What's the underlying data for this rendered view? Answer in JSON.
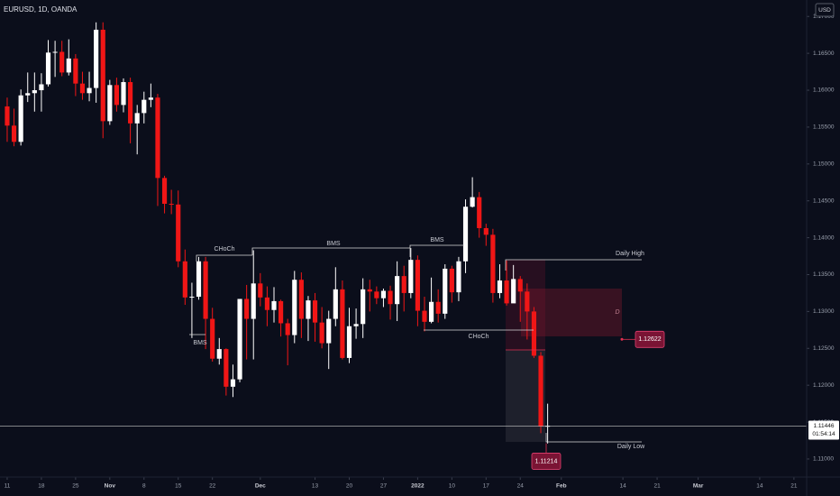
{
  "header": {
    "symbol": "EURUSD, 1D, OANDA",
    "currency": "USD"
  },
  "chart_data": {
    "type": "candlestick",
    "open": [
      1.1578,
      1.1552,
      1.153,
      1.1593,
      1.1596,
      1.16,
      1.1608,
      1.1651,
      1.1652,
      1.1624,
      1.1643,
      1.1609,
      1.1596,
      1.1603,
      1.1682,
      1.1558,
      1.1607,
      1.158,
      1.1611,
      1.1555,
      1.1569,
      1.1587,
      1.159,
      1.1481,
      1.1446,
      1.1445,
      1.1368,
      1.1319,
      1.132,
      1.1368,
      1.129,
      1.1236,
      1.1249,
      1.1198,
      1.1208,
      1.1317,
      1.129,
      1.1338,
      1.1319,
      1.1302,
      1.1314,
      1.1284,
      1.1268,
      1.1343,
      1.129,
      1.1315,
      1.1285,
      1.1257,
      1.129,
      1.133,
      1.1237,
      1.128,
      1.1283,
      1.133,
      1.1327,
      1.1318,
      1.1328,
      1.131,
      1.1348,
      1.1325,
      1.137,
      1.1301,
      1.1286,
      1.1313,
      1.1297,
      1.1358,
      1.1326,
      1.1368,
      1.1442,
      1.1455,
      1.1413,
      1.1404,
      1.1325,
      1.1342,
      1.1311,
      1.1344,
      1.1327,
      1.13,
      1.124,
      1.1144
    ],
    "high": [
      1.159,
      1.1575,
      1.1601,
      1.1624,
      1.1624,
      1.1623,
      1.1668,
      1.1667,
      1.1667,
      1.1669,
      1.1649,
      1.1625,
      1.1625,
      1.1692,
      1.1692,
      1.1614,
      1.1617,
      1.1616,
      1.1617,
      1.158,
      1.1598,
      1.1609,
      1.1595,
      1.1484,
      1.1465,
      1.1464,
      1.1384,
      1.1339,
      1.1374,
      1.1374,
      1.1305,
      1.1264,
      1.125,
      1.1228,
      1.1316,
      1.1336,
      1.1383,
      1.1352,
      1.1334,
      1.1333,
      1.1316,
      1.129,
      1.1355,
      1.1353,
      1.1321,
      1.1325,
      1.1306,
      1.1301,
      1.136,
      1.1342,
      1.1305,
      1.1304,
      1.1345,
      1.1343,
      1.1334,
      1.1331,
      1.1335,
      1.1368,
      1.1362,
      1.1386,
      1.1376,
      1.132,
      1.1346,
      1.133,
      1.1364,
      1.1362,
      1.1374,
      1.1452,
      1.1482,
      1.1462,
      1.1419,
      1.1412,
      1.1364,
      1.1369,
      1.1363,
      1.1348,
      1.1338,
      1.1306,
      1.1245,
      1.1175
    ],
    "low": [
      1.153,
      1.1524,
      1.1525,
      1.1584,
      1.1571,
      1.1571,
      1.1605,
      1.1618,
      1.1619,
      1.162,
      1.1592,
      1.1587,
      1.1585,
      1.1583,
      1.1535,
      1.1553,
      1.1571,
      1.157,
      1.1528,
      1.1513,
      1.1555,
      1.1577,
      1.1443,
      1.1433,
      1.1432,
      1.136,
      1.1309,
      1.1264,
      1.1316,
      1.1249,
      1.1232,
      1.1228,
      1.1186,
      1.1184,
      1.1204,
      1.1235,
      1.1235,
      1.1307,
      1.128,
      1.1285,
      1.1266,
      1.1227,
      1.1257,
      1.1264,
      1.126,
      1.1259,
      1.125,
      1.1222,
      1.128,
      1.1235,
      1.123,
      1.1263,
      1.1264,
      1.13,
      1.131,
      1.1306,
      1.1289,
      1.1287,
      1.13,
      1.1318,
      1.128,
      1.1273,
      1.1284,
      1.1285,
      1.129,
      1.1312,
      1.1314,
      1.1352,
      1.1441,
      1.14,
      1.1389,
      1.1312,
      1.1318,
      1.1308,
      1.1312,
      1.1286,
      1.1262,
      1.1237,
      1.1135,
      1.1121
    ],
    "close": [
      1.1552,
      1.153,
      1.1593,
      1.1596,
      1.16,
      1.1608,
      1.1651,
      1.1652,
      1.1624,
      1.1643,
      1.1609,
      1.1596,
      1.1603,
      1.1682,
      1.1558,
      1.1607,
      1.158,
      1.1611,
      1.1555,
      1.1569,
      1.1587,
      1.159,
      1.1481,
      1.1446,
      1.1445,
      1.1368,
      1.1319,
      1.132,
      1.1368,
      1.129,
      1.1236,
      1.1249,
      1.1198,
      1.1208,
      1.1317,
      1.129,
      1.1338,
      1.1319,
      1.1302,
      1.1314,
      1.1284,
      1.1268,
      1.1343,
      1.129,
      1.1315,
      1.1285,
      1.1257,
      1.129,
      1.133,
      1.1237,
      1.128,
      1.1283,
      1.133,
      1.1327,
      1.1318,
      1.1328,
      1.131,
      1.1348,
      1.1325,
      1.137,
      1.1301,
      1.1286,
      1.1313,
      1.1297,
      1.1358,
      1.1326,
      1.1368,
      1.1442,
      1.1455,
      1.1413,
      1.1404,
      1.1325,
      1.1342,
      1.1311,
      1.1344,
      1.1327,
      1.13,
      1.124,
      1.1144,
      1.1145
    ],
    "up_color": "#ffffff",
    "down_color": "#f01616",
    "xlim": [
      -1.05,
      116.86
    ],
    "xticks": [
      {
        "value": 0,
        "label": "11"
      },
      {
        "value": 5,
        "label": "18"
      },
      {
        "value": 10,
        "label": "25"
      },
      {
        "value": 15,
        "label": "Nov"
      },
      {
        "value": 20,
        "label": "8"
      },
      {
        "value": 25,
        "label": "15"
      },
      {
        "value": 30,
        "label": "22"
      },
      {
        "value": 37,
        "label": "Dec"
      },
      {
        "value": 45,
        "label": "13"
      },
      {
        "value": 50,
        "label": "20"
      },
      {
        "value": 55,
        "label": "27"
      },
      {
        "value": 60,
        "label": "2022"
      },
      {
        "value": 65,
        "label": "10"
      },
      {
        "value": 70,
        "label": "17"
      },
      {
        "value": 75,
        "label": "24"
      },
      {
        "value": 81,
        "label": "Feb"
      },
      {
        "value": 90,
        "label": "14"
      },
      {
        "value": 95,
        "label": "21"
      },
      {
        "value": 101,
        "label": "Mar"
      },
      {
        "value": 110,
        "label": "14"
      },
      {
        "value": 115,
        "label": "21"
      }
    ],
    "ylim": [
      1.10755,
      1.17223
    ],
    "yticks": [
      {
        "value": 1.11,
        "label": "1.11000"
      },
      {
        "value": 1.115,
        "label": "1.11500"
      },
      {
        "value": 1.12,
        "label": "1.12000"
      },
      {
        "value": 1.125,
        "label": "1.12500"
      },
      {
        "value": 1.13,
        "label": "1.13000"
      },
      {
        "value": 1.135,
        "label": "1.13500"
      },
      {
        "value": 1.14,
        "label": "1.14000"
      },
      {
        "value": 1.145,
        "label": "1.14500"
      },
      {
        "value": 1.15,
        "label": "1.15000"
      },
      {
        "value": 1.155,
        "label": "1.15500"
      },
      {
        "value": 1.16,
        "label": "1.16000"
      },
      {
        "value": 1.165,
        "label": "1.16500"
      },
      {
        "value": 1.17,
        "label": "1.17000"
      }
    ],
    "annotations": [
      "CHoCh",
      "BMS",
      "BMS",
      "BMS",
      "CHoCh",
      "Daily High",
      "Daily Low",
      "D"
    ],
    "zone_label": {
      "value": 1.12622,
      "label": "1.12622"
    },
    "low_label": {
      "value": 1.11214,
      "label": "1.11214"
    },
    "last_price": {
      "value": 1.11446,
      "label": "1.11446"
    },
    "countdown": "01:54:14"
  }
}
